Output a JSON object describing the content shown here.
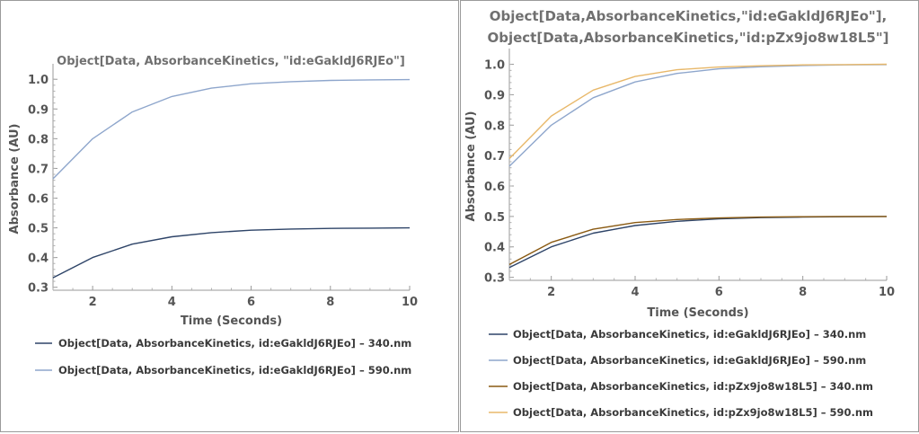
{
  "chart_data": [
    {
      "type": "line",
      "title_lines": [
        "Object[Data, AbsorbanceKinetics, \"id:eGakldJ6RJEo\"]"
      ],
      "xlabel": "Time  (Seconds)",
      "ylabel": "Absorbance  (AU)",
      "xlim": [
        1,
        10
      ],
      "ylim": [
        0.29,
        1.04
      ],
      "xticks": [
        2,
        4,
        6,
        8,
        10
      ],
      "yticks": [
        0.3,
        0.4,
        0.5,
        0.6,
        0.7,
        0.8,
        0.9,
        1.0
      ],
      "ytick_labels": [
        "0.3",
        "0.4",
        "0.5",
        "0.6",
        "0.7",
        "0.8",
        "0.9",
        "1.0"
      ],
      "grid": false,
      "legend_position": "bottom",
      "series": [
        {
          "name": "Object[Data, AbsorbanceKinetics, id:eGakldJ6RJEo] – 340.nm",
          "color": "#2e4468",
          "x": [
            1,
            2,
            3,
            4,
            5,
            6,
            7,
            8,
            9,
            10
          ],
          "y": [
            0.332,
            0.4,
            0.445,
            0.47,
            0.484,
            0.492,
            0.496,
            0.498,
            0.499,
            0.5
          ]
        },
        {
          "name": "Object[Data, AbsorbanceKinetics, id:eGakldJ6RJEo] – 590.nm",
          "color": "#8ea6cc",
          "x": [
            1,
            2,
            3,
            4,
            5,
            6,
            7,
            8,
            9,
            10
          ],
          "y": [
            0.665,
            0.8,
            0.89,
            0.942,
            0.97,
            0.985,
            0.992,
            0.996,
            0.998,
            0.999
          ]
        }
      ]
    },
    {
      "type": "line",
      "title_lines": [
        "Object[Data,AbsorbanceKinetics,\"id:eGakldJ6RJEo\"],",
        "Object[Data,AbsorbanceKinetics,\"id:pZx9jo8w18L5\"]"
      ],
      "xlabel": "Time  (Seconds)",
      "ylabel": "Absorbance  (AU)",
      "xlim": [
        1,
        10
      ],
      "ylim": [
        0.29,
        1.04
      ],
      "xticks": [
        2,
        4,
        6,
        8,
        10
      ],
      "yticks": [
        0.3,
        0.4,
        0.5,
        0.6,
        0.7,
        0.8,
        0.9,
        1.0
      ],
      "ytick_labels": [
        "0.3",
        "0.4",
        "0.5",
        "0.6",
        "0.7",
        "0.8",
        "0.9",
        "1.0"
      ],
      "grid": false,
      "legend_position": "bottom",
      "series": [
        {
          "name": "Object[Data, AbsorbanceKinetics, id:eGakldJ6RJEo] – 340.nm",
          "color": "#2e4468",
          "x": [
            1,
            2,
            3,
            4,
            5,
            6,
            7,
            8,
            9,
            10
          ],
          "y": [
            0.332,
            0.4,
            0.445,
            0.47,
            0.484,
            0.492,
            0.496,
            0.498,
            0.499,
            0.5
          ]
        },
        {
          "name": "Object[Data, AbsorbanceKinetics, id:eGakldJ6RJEo] – 590.nm",
          "color": "#8ea6cc",
          "x": [
            1,
            2,
            3,
            4,
            5,
            6,
            7,
            8,
            9,
            10
          ],
          "y": [
            0.665,
            0.8,
            0.89,
            0.942,
            0.97,
            0.985,
            0.992,
            0.996,
            0.998,
            0.999
          ]
        },
        {
          "name": "Object[Data, AbsorbanceKinetics, id:pZx9jo8w18L5] – 340.nm",
          "color": "#8a5a12",
          "x": [
            1,
            2,
            3,
            4,
            5,
            6,
            7,
            8,
            9,
            10
          ],
          "y": [
            0.342,
            0.415,
            0.458,
            0.48,
            0.49,
            0.495,
            0.498,
            0.499,
            0.5,
            0.5
          ]
        },
        {
          "name": "Object[Data, AbsorbanceKinetics, id:pZx9jo8w18L5] – 590.nm",
          "color": "#e8b86a",
          "x": [
            1,
            2,
            3,
            4,
            5,
            6,
            7,
            8,
            9,
            10
          ],
          "y": [
            0.69,
            0.83,
            0.915,
            0.96,
            0.982,
            0.991,
            0.995,
            0.998,
            0.999,
            1.0
          ]
        }
      ]
    }
  ]
}
